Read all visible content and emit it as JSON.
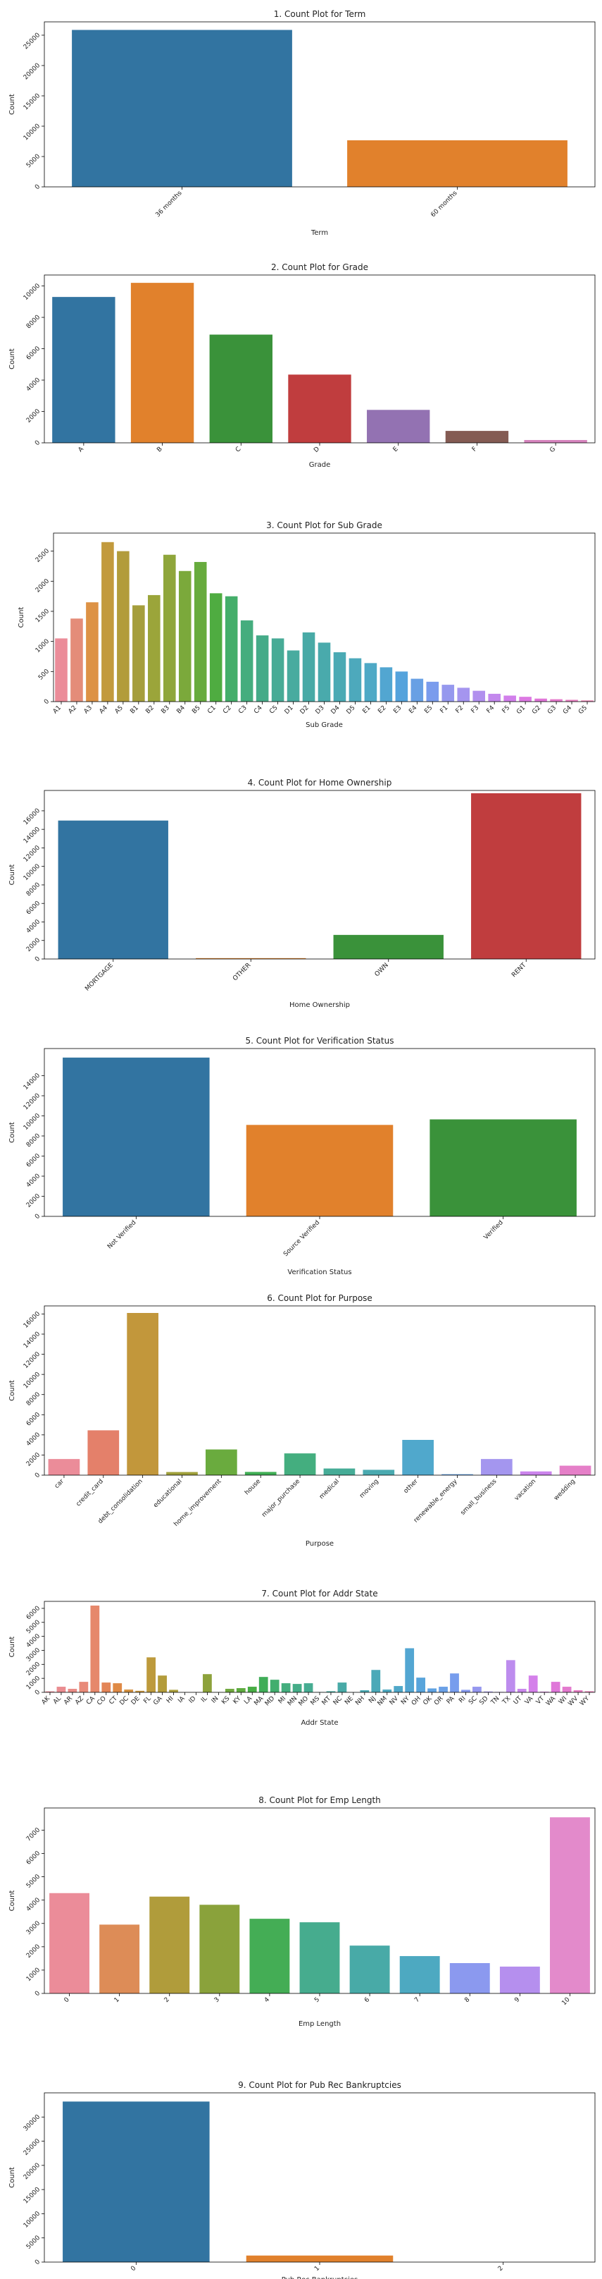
{
  "chart_data": [
    {
      "type": "bar",
      "title": "1. Count Plot for Term",
      "xlabel": "Term",
      "ylabel": "Count",
      "categories": [
        "36 months",
        "60 months"
      ],
      "values": [
        25869,
        7677
      ],
      "colors": [
        "#3274a1",
        "#e1812c"
      ],
      "ylim": [
        0,
        27200
      ],
      "yticks": [
        0,
        5000,
        10000,
        15000,
        20000,
        25000
      ],
      "ytick_rotation": 45,
      "xtick_rotation": 45
    },
    {
      "type": "bar",
      "title": "2. Count Plot for Grade",
      "xlabel": "Grade",
      "ylabel": "Count",
      "categories": [
        "A",
        "B",
        "C",
        "D",
        "E",
        "F",
        "G"
      ],
      "values": [
        9300,
        10200,
        6900,
        4350,
        2100,
        760,
        180
      ],
      "colors": [
        "#3274a1",
        "#e1812c",
        "#3a923a",
        "#c03d3e",
        "#9372b2",
        "#845b53",
        "#d684bd"
      ],
      "ylim": [
        0,
        10700
      ],
      "yticks": [
        0,
        2000,
        4000,
        6000,
        8000,
        10000
      ],
      "ytick_rotation": 45,
      "xtick_rotation": 45
    },
    {
      "type": "bar",
      "title": "3. Count Plot for Sub Grade",
      "xlabel": "Sub Grade",
      "ylabel": "Count",
      "categories": [
        "A1",
        "A2",
        "A3",
        "A4",
        "A5",
        "B1",
        "B2",
        "B3",
        "B4",
        "B5",
        "C1",
        "C2",
        "C3",
        "C4",
        "C5",
        "D1",
        "D2",
        "D3",
        "D4",
        "D5",
        "E1",
        "E2",
        "E3",
        "E4",
        "E5",
        "F1",
        "F2",
        "F3",
        "F4",
        "F5",
        "G1",
        "G2",
        "G3",
        "G4",
        "G5"
      ],
      "values": [
        1050,
        1380,
        1650,
        2650,
        2500,
        1600,
        1770,
        2440,
        2170,
        2320,
        1800,
        1750,
        1350,
        1100,
        1050,
        850,
        1150,
        980,
        820,
        720,
        640,
        570,
        500,
        380,
        330,
        280,
        230,
        180,
        130,
        100,
        80,
        50,
        40,
        30,
        20
      ],
      "colors": [
        "#eb8c99",
        "#e48c79",
        "#dd9245",
        "#c29a3d",
        "#b29c3b",
        "#a59e3c",
        "#9ba53a",
        "#8fa63b",
        "#7ba93b",
        "#67ab3d",
        "#4fac41",
        "#44ae6a",
        "#45ad7e",
        "#45ab88",
        "#47ab96",
        "#48ab9f",
        "#48aaa6",
        "#49aaac",
        "#4aaab4",
        "#4da9bc",
        "#4ea9c6",
        "#52a6d1",
        "#54a3dc",
        "#68a0e4",
        "#7a9ced",
        "#9598ee",
        "#a595ef",
        "#b190ee",
        "#c388ed",
        "#d17feb",
        "#dc79e2",
        "#e075d8",
        "#e47acc",
        "#e77fc0",
        "#e983b2"
      ],
      "ylim": [
        0,
        2800
      ],
      "yticks": [
        0,
        500,
        1000,
        1500,
        2000,
        2500
      ],
      "ytick_rotation": 45,
      "xtick_rotation": 45
    },
    {
      "type": "bar",
      "title": "4. Count Plot for Home Ownership",
      "xlabel": "Home Ownership",
      "ylabel": "Count",
      "categories": [
        "MORTGAGE",
        "OTHER",
        "OWN",
        "RENT"
      ],
      "values": [
        14950,
        90,
        2600,
        17900
      ],
      "colors": [
        "#3274a1",
        "#e1812c",
        "#3a923a",
        "#c03d3e"
      ],
      "ylim": [
        0,
        18200
      ],
      "yticks": [
        0,
        2000,
        4000,
        6000,
        8000,
        10000,
        12000,
        14000,
        16000
      ],
      "ytick_rotation": 45,
      "xtick_rotation": 45
    },
    {
      "type": "bar",
      "title": "5. Count Plot for Verification Status",
      "xlabel": "Verification Status",
      "ylabel": "Count",
      "categories": [
        "Not Verified",
        "Source Verified",
        "Verified"
      ],
      "values": [
        15800,
        9100,
        9650
      ],
      "colors": [
        "#3274a1",
        "#e1812c",
        "#3a923a"
      ],
      "ylim": [
        0,
        16700
      ],
      "yticks": [
        0,
        2000,
        4000,
        6000,
        8000,
        10000,
        12000,
        14000
      ],
      "ytick_rotation": 45,
      "xtick_rotation": 45
    },
    {
      "type": "bar",
      "title": "6. Count Plot for Purpose",
      "xlabel": "Purpose",
      "ylabel": "Count",
      "categories": [
        "car",
        "credit_card",
        "debt_consolidation",
        "educational",
        "home_improvement",
        "house",
        "major_purchase",
        "medical",
        "moving",
        "other",
        "renewable_energy",
        "small_business",
        "vacation",
        "wedding"
      ],
      "values": [
        1600,
        4450,
        16100,
        310,
        2550,
        320,
        2160,
        660,
        530,
        3500,
        95,
        1600,
        370,
        940
      ],
      "colors": [
        "#eb8c99",
        "#e4806a",
        "#c2973b",
        "#9fa03a",
        "#6aab3e",
        "#3fae54",
        "#44ae7f",
        "#46ac97",
        "#4aaab0",
        "#50a8cc",
        "#68a2e4",
        "#a496ef",
        "#cb83ec",
        "#e57fc8"
      ],
      "ylim": [
        0,
        16800
      ],
      "yticks": [
        0,
        2000,
        4000,
        6000,
        8000,
        10000,
        12000,
        14000,
        16000
      ],
      "ytick_rotation": 45,
      "xtick_rotation": 45
    },
    {
      "type": "bar",
      "title": "7. Count Plot for Addr State",
      "xlabel": "Addr State",
      "ylabel": "Count",
      "categories": [
        "AK",
        "AL",
        "AR",
        "AZ",
        "CA",
        "CO",
        "CT",
        "DC",
        "DE",
        "FL",
        "GA",
        "HI",
        "IA",
        "ID",
        "IL",
        "IN",
        "KS",
        "KY",
        "LA",
        "MA",
        "MD",
        "MI",
        "MN",
        "MO",
        "MS",
        "MT",
        "NC",
        "NE",
        "NH",
        "NJ",
        "NM",
        "NV",
        "NY",
        "OH",
        "OK",
        "OR",
        "PA",
        "RI",
        "SC",
        "SD",
        "TN",
        "TX",
        "UT",
        "VA",
        "VT",
        "WA",
        "WI",
        "WV",
        "WY"
      ],
      "values": [
        70,
        400,
        250,
        750,
        6200,
        700,
        650,
        200,
        110,
        2500,
        1200,
        180,
        5,
        5,
        1300,
        10,
        250,
        300,
        400,
        1100,
        900,
        650,
        600,
        650,
        20,
        80,
        700,
        5,
        150,
        1600,
        200,
        450,
        3150,
        1050,
        280,
        400,
        1350,
        180,
        400,
        60,
        30,
        2300,
        250,
        1200,
        50,
        750,
        400,
        150,
        80
      ],
      "colors": [
        "#eb8c99",
        "#ea8c90",
        "#e98c86",
        "#e88a79",
        "#e6886b",
        "#e38557",
        "#df8a46",
        "#d49140",
        "#c8963d",
        "#bd9a3c",
        "#b39c3b",
        "#aa9e3b",
        "#a19f3b",
        "#98a03b",
        "#8da23b",
        "#7fa53c",
        "#70a83d",
        "#5eab3f",
        "#48ad44",
        "#40ad58",
        "#42ae6e",
        "#44ae7e",
        "#45ad88",
        "#46ac92",
        "#47ab9a",
        "#48aba1",
        "#48aaa7",
        "#49aaac",
        "#4aaab2",
        "#4ba9b8",
        "#4ea9c0",
        "#50a8c9",
        "#53a6d2",
        "#57a4db",
        "#5fa2e2",
        "#6aa0e6",
        "#779ded",
        "#879aef",
        "#9597ef",
        "#a495ef",
        "#b190ee",
        "#bd8cee",
        "#c987ec",
        "#d480ea",
        "#db7be2",
        "#df77d9",
        "#e37ace",
        "#e67ec3",
        "#e882b8"
      ],
      "ylim": [
        0,
        6500
      ],
      "yticks": [
        0,
        1000,
        2000,
        3000,
        4000,
        5000,
        6000
      ],
      "ytick_rotation": 45,
      "xtick_rotation": 45
    },
    {
      "type": "bar",
      "title": "8. Count Plot for Emp Length",
      "xlabel": "Emp Length",
      "ylabel": "Count",
      "categories": [
        "0",
        "1",
        "2",
        "3",
        "4",
        "5",
        "6",
        "7",
        "8",
        "9",
        "10"
      ],
      "values": [
        4300,
        2950,
        4150,
        3800,
        3200,
        3050,
        2050,
        1600,
        1300,
        1150,
        7550
      ],
      "colors": [
        "#eb8c99",
        "#dd8c57",
        "#b09c3b",
        "#8aa23b",
        "#44ad55",
        "#46ac8e",
        "#48aaa7",
        "#4da9c1",
        "#8b99ef",
        "#b58fee",
        "#e38acb"
      ],
      "ylim": [
        0,
        7950
      ],
      "yticks": [
        0,
        1000,
        2000,
        3000,
        4000,
        5000,
        6000,
        7000
      ],
      "ytick_rotation": 45,
      "xtick_rotation": 45
    },
    {
      "type": "bar",
      "title": "9. Count Plot for Pub Rec Bankruptcies",
      "xlabel": "Pub Rec Bankruptcies",
      "ylabel": "Count",
      "categories": [
        "0",
        "1",
        "2"
      ],
      "values": [
        33200,
        1350,
        5
      ],
      "colors": [
        "#3274a1",
        "#e1812c",
        "#3a923a"
      ],
      "ylim": [
        0,
        35000
      ],
      "yticks": [
        0,
        5000,
        10000,
        15000,
        20000,
        25000,
        30000
      ],
      "ytick_rotation": 45,
      "xtick_rotation": 45
    }
  ]
}
